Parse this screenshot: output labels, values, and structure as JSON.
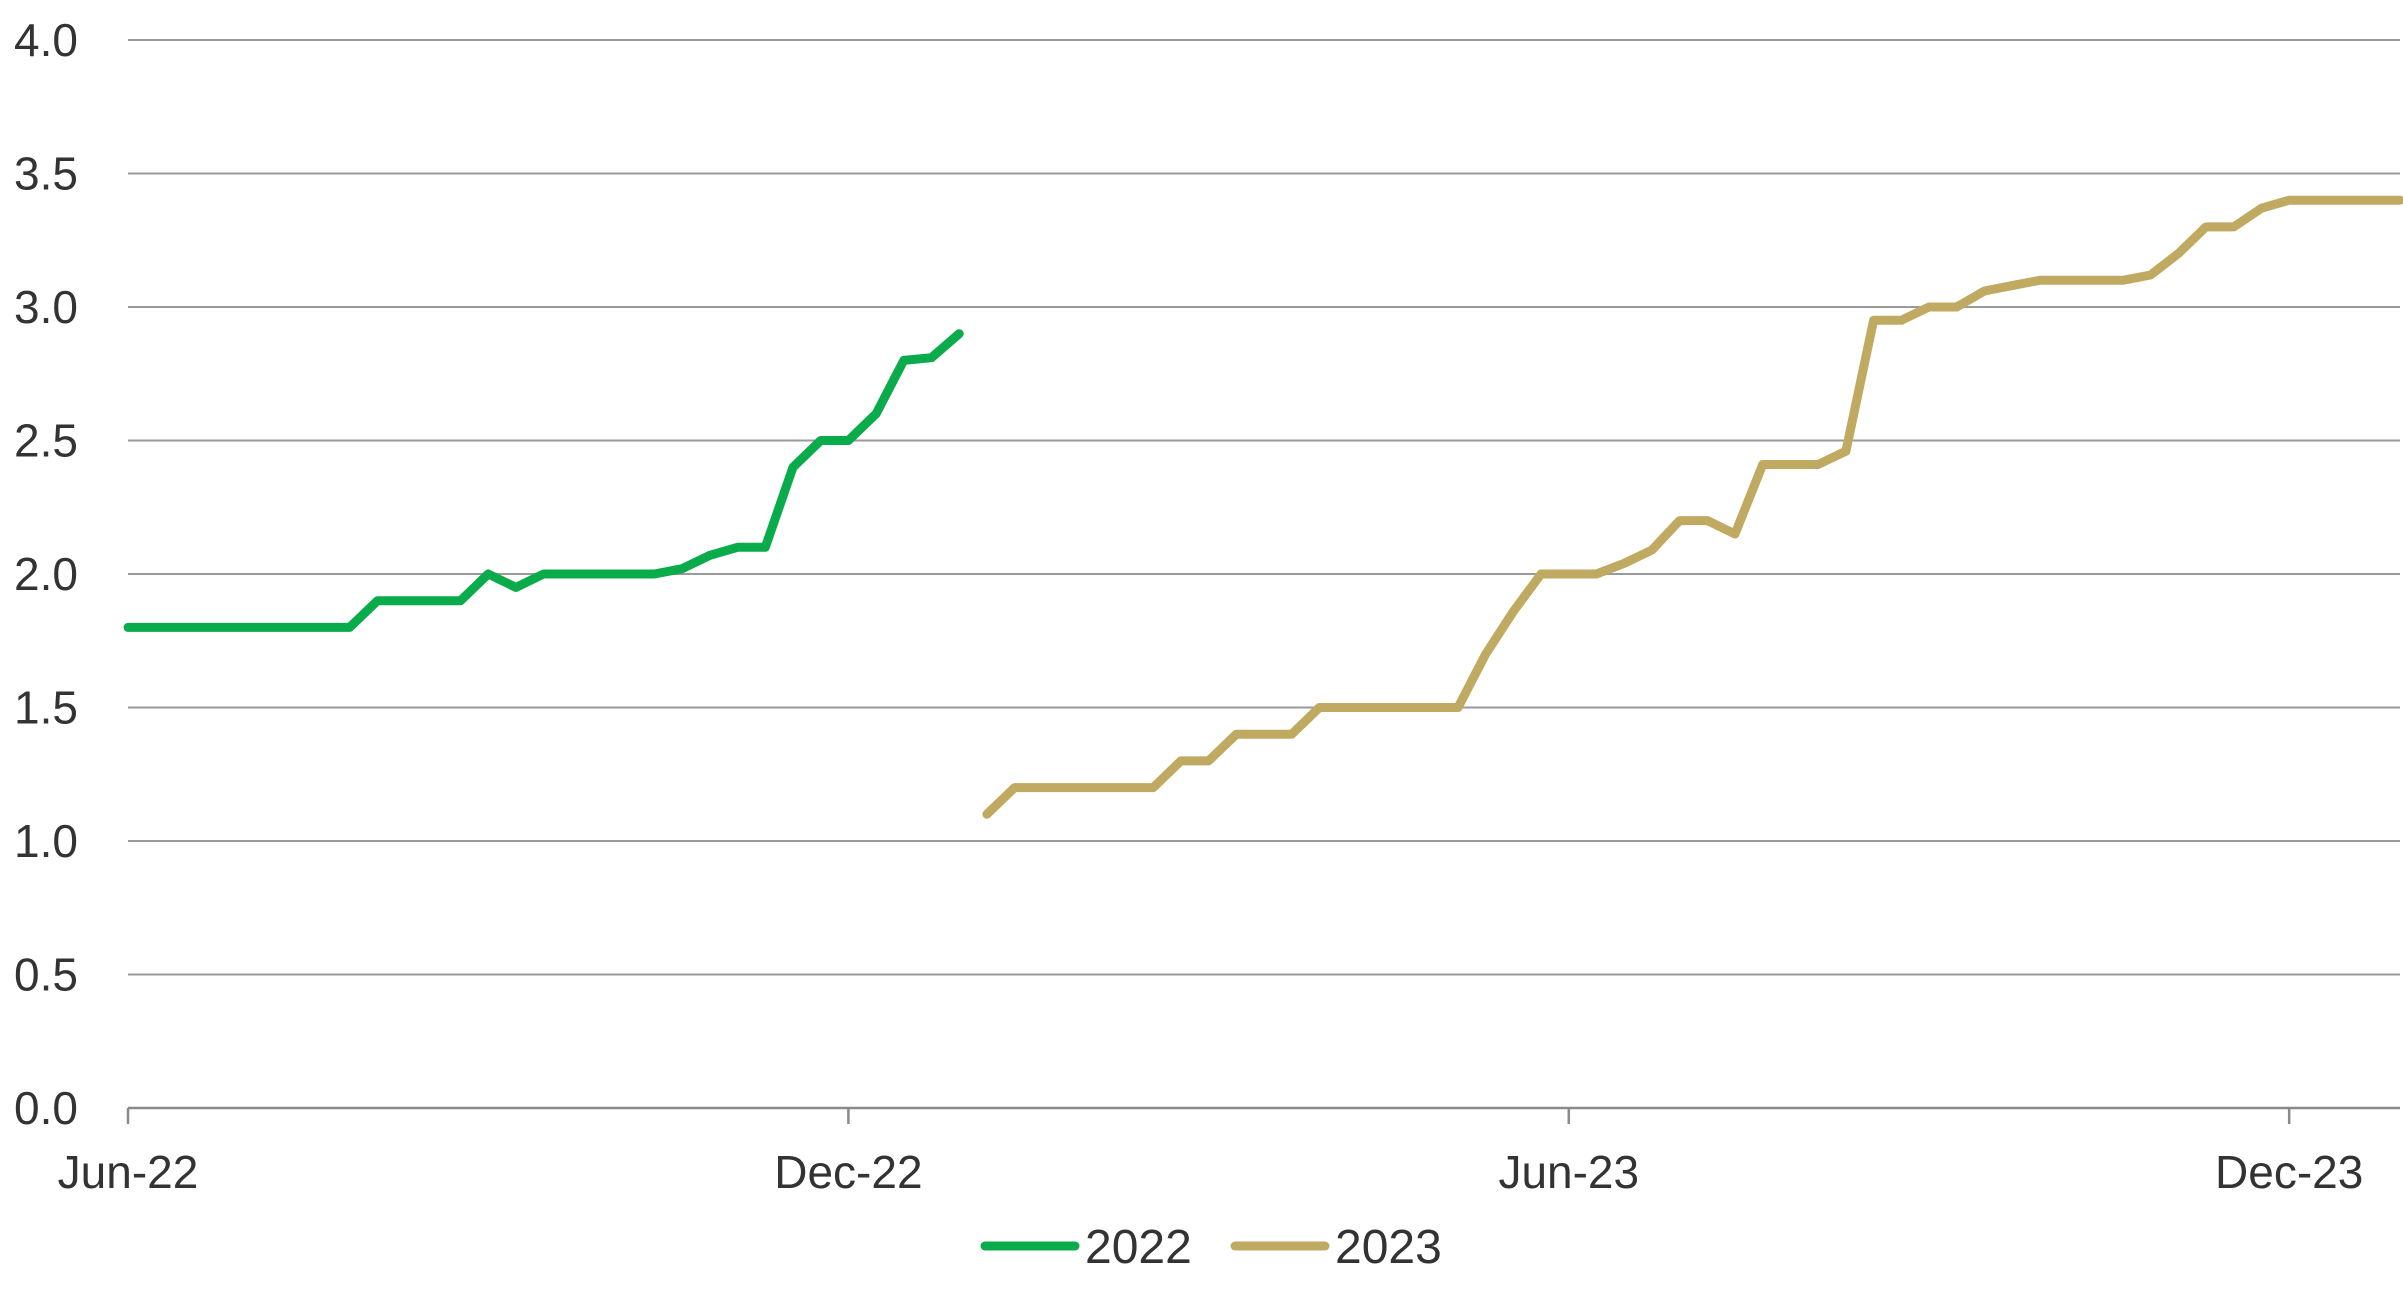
{
  "chart_data": {
    "type": "line",
    "title": "",
    "xlabel": "",
    "ylabel": "",
    "ylim": [
      0,
      4
    ],
    "yticks": [
      "0.0",
      "0.5",
      "1.0",
      "1.5",
      "2.0",
      "2.5",
      "3.0",
      "3.5",
      "4.0"
    ],
    "ytick_values": [
      0,
      0.5,
      1.0,
      1.5,
      2.0,
      2.5,
      3.0,
      3.5,
      4.0
    ],
    "xlim": [
      0,
      82
    ],
    "xticks": [
      "Jun-22",
      "Dec-22",
      "Jun-23",
      "Dec-23"
    ],
    "xtick_values": [
      0,
      26,
      52,
      78
    ],
    "x_unit": "weeks",
    "grid": true,
    "legend_position": "bottom-center",
    "series": [
      {
        "name": "2022",
        "color": "#0aab4a",
        "points": [
          [
            0,
            1.8
          ],
          [
            8,
            1.8
          ],
          [
            9,
            1.9
          ],
          [
            12,
            1.9
          ],
          [
            13,
            2.0
          ],
          [
            14,
            1.95
          ],
          [
            15,
            2.0
          ],
          [
            19,
            2.0
          ],
          [
            20,
            2.02
          ],
          [
            21,
            2.07
          ],
          [
            22,
            2.1
          ],
          [
            23,
            2.1
          ],
          [
            24,
            2.4
          ],
          [
            25,
            2.5
          ],
          [
            26,
            2.5
          ],
          [
            27,
            2.6
          ],
          [
            28,
            2.8
          ],
          [
            29,
            2.81
          ],
          [
            30,
            2.9
          ]
        ]
      },
      {
        "name": "2023",
        "color": "#c0aa62",
        "points": [
          [
            31,
            1.1
          ],
          [
            32,
            1.2
          ],
          [
            37,
            1.2
          ],
          [
            38,
            1.3
          ],
          [
            39,
            1.3
          ],
          [
            40,
            1.4
          ],
          [
            42,
            1.4
          ],
          [
            43,
            1.5
          ],
          [
            48,
            1.5
          ],
          [
            49,
            1.7
          ],
          [
            50,
            1.86
          ],
          [
            51,
            2.0
          ],
          [
            53,
            2.0
          ],
          [
            54,
            2.04
          ],
          [
            55,
            2.09
          ],
          [
            56,
            2.2
          ],
          [
            57,
            2.2
          ],
          [
            58,
            2.15
          ],
          [
            59,
            2.41
          ],
          [
            61,
            2.41
          ],
          [
            62,
            2.46
          ],
          [
            63,
            2.95
          ],
          [
            64,
            2.95
          ],
          [
            65,
            3.0
          ],
          [
            66,
            3.0
          ],
          [
            67,
            3.06
          ],
          [
            68,
            3.08
          ],
          [
            69,
            3.1
          ],
          [
            72,
            3.1
          ],
          [
            73,
            3.12
          ],
          [
            74,
            3.2
          ],
          [
            75,
            3.3
          ],
          [
            76,
            3.3
          ],
          [
            77,
            3.37
          ],
          [
            78,
            3.4
          ],
          [
            82,
            3.4
          ]
        ]
      }
    ]
  }
}
